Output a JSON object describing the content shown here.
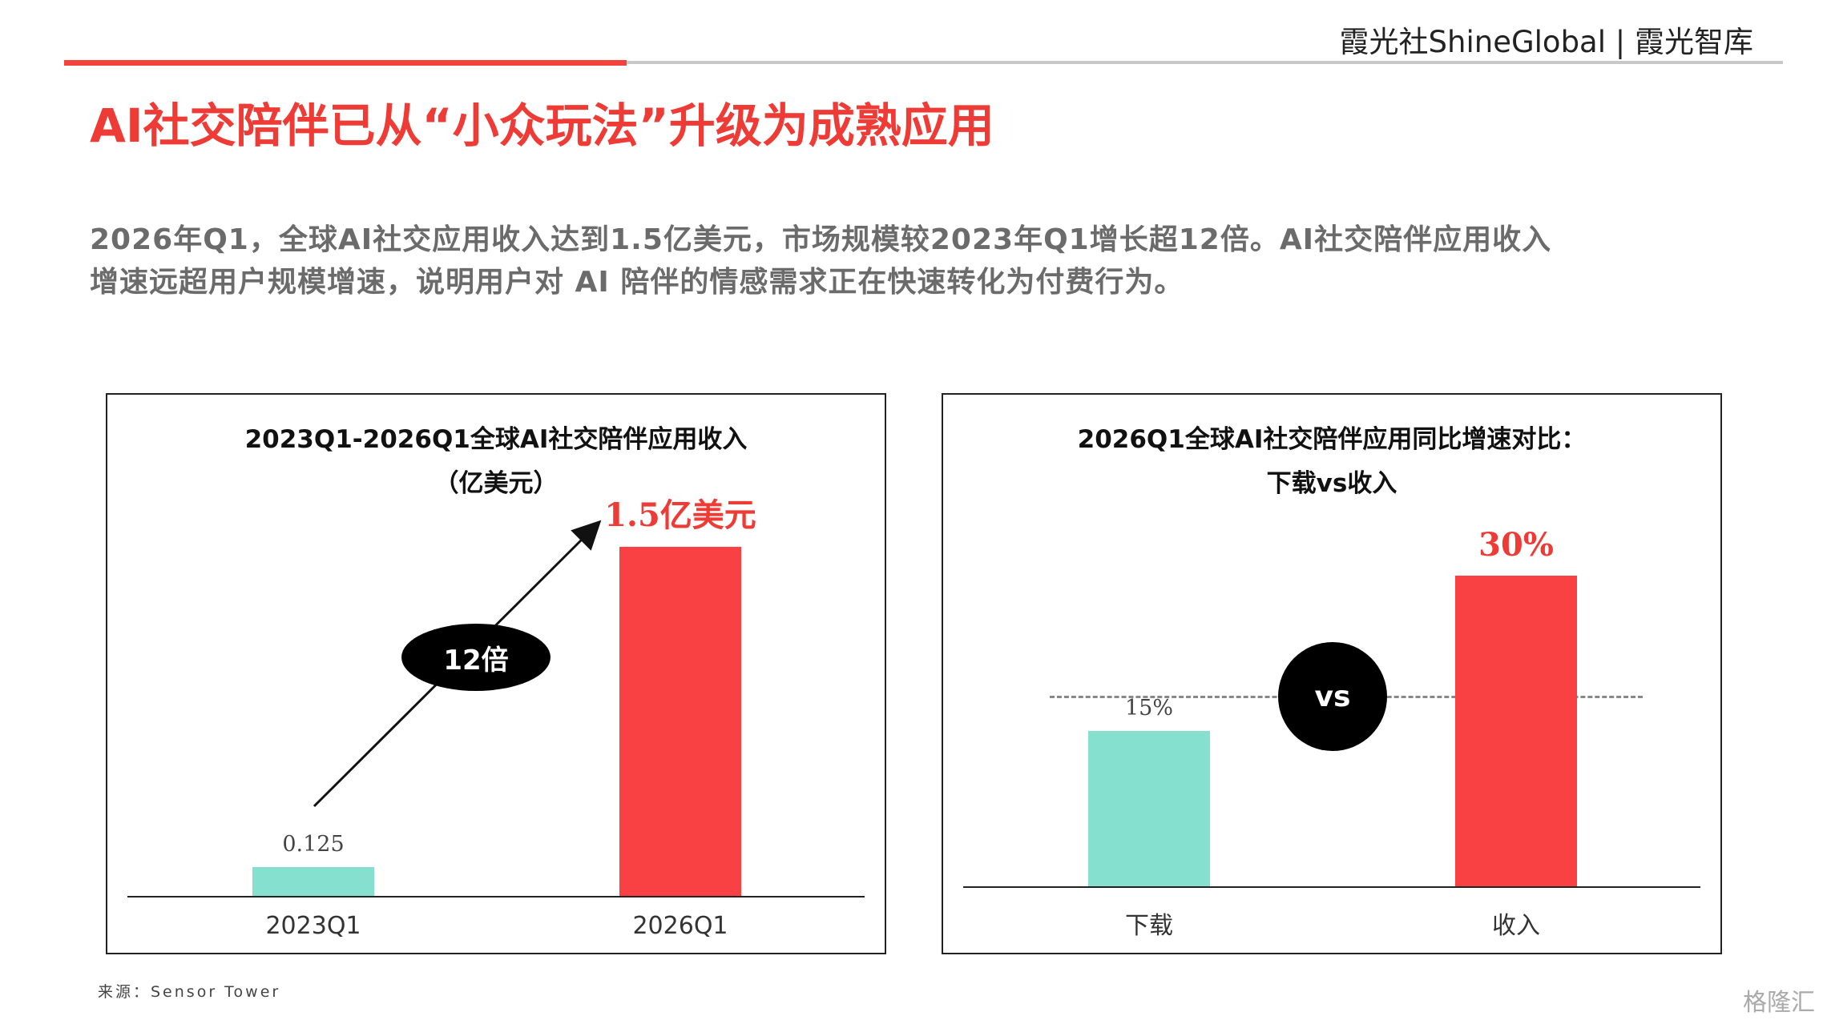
{
  "header": {
    "brand": "霞光社ShineGlobal | 霞光智库"
  },
  "title": "AI社交陪伴已从“小众玩法”升级为成熟应用",
  "description": {
    "line1": "2026年Q1，全球AI社交应用收入达到1.5亿美元，市场规模较2023年Q1增长超12倍。AI社交陪伴应用收入",
    "line2": "增速远超用户规模增速，说明用户对 AI 陪伴的情感需求正在快速转化为付费行为。"
  },
  "chart_data": [
    {
      "type": "bar",
      "title": "2023Q1-2026Q1全球AI社交陪伴应用收入",
      "subtitle": "（亿美元）",
      "categories": [
        "2023Q1",
        "2026Q1"
      ],
      "values": [
        0.125,
        1.5
      ],
      "value_labels": [
        "0.125",
        "1.5亿美元"
      ],
      "colors": [
        "#85e0d0",
        "#f94144"
      ],
      "ylim": [
        0,
        1.5
      ],
      "annotation": "12倍",
      "grid": false
    },
    {
      "type": "bar",
      "title": "2026Q1全球AI社交陪伴应用同比增速对比：",
      "subtitle": "下载vs收入",
      "categories": [
        "下载",
        "收入"
      ],
      "values": [
        15,
        30
      ],
      "value_labels": [
        "15%",
        "30%"
      ],
      "colors": [
        "#85e0d0",
        "#f94144"
      ],
      "ylim": [
        0,
        30
      ],
      "annotation": "vs",
      "reference_line": 15,
      "grid": false
    }
  ],
  "source": "来源：Sensor Tower",
  "watermark": "格隆汇"
}
